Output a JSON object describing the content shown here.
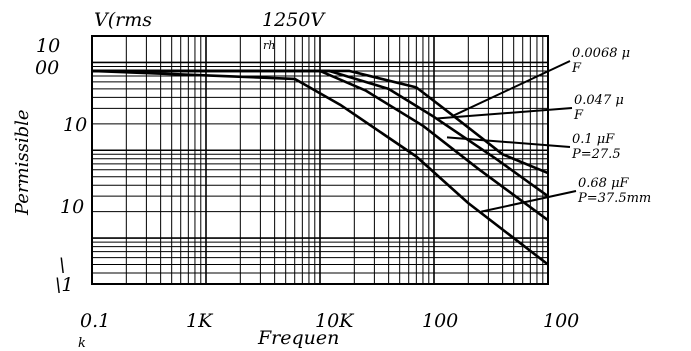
{
  "chart_data": {
    "type": "line",
    "title": "1250V",
    "ylabel": "Permissible",
    "yunit": "V(rms",
    "xlabel": "Frequen",
    "x_scale": "log",
    "y_scale": "log",
    "xlim": [
      100,
      1000000
    ],
    "ylim": [
      3,
      2000
    ],
    "x_tick_labels": [
      "0.1",
      "1K",
      "10K",
      "100",
      "100"
    ],
    "x_tick_values": [
      100,
      1000,
      10000,
      100000,
      1000000
    ],
    "x_tick_sub": [
      "k"
    ],
    "y_tick_labels": [
      "10",
      "00",
      "10",
      "10",
      "\\",
      "\\1"
    ],
    "fragment_text": "rh",
    "series": [
      {
        "name": "0.0068 μF",
        "points": [
          [
            100,
            800
          ],
          [
            18000,
            800
          ],
          [
            70000,
            520
          ],
          [
            140000,
            260
          ],
          [
            400000,
            90
          ],
          [
            1000000,
            55
          ]
        ]
      },
      {
        "name": "0.047 μF",
        "points": [
          [
            100,
            800
          ],
          [
            12000,
            800
          ],
          [
            40000,
            500
          ],
          [
            100000,
            240
          ],
          [
            350000,
            80
          ],
          [
            1000000,
            30
          ]
        ]
      },
      {
        "name": "0.1 μF",
        "points": [
          [
            100,
            800
          ],
          [
            10000,
            800
          ],
          [
            25000,
            480
          ],
          [
            80000,
            190
          ],
          [
            250000,
            60
          ],
          [
            1000000,
            16
          ]
        ]
      },
      {
        "name": "0.68 μF",
        "points": [
          [
            100,
            800
          ],
          [
            6000,
            650
          ],
          [
            15000,
            330
          ],
          [
            70000,
            85
          ],
          [
            200000,
            25
          ],
          [
            1000000,
            5
          ]
        ]
      }
    ],
    "legend_labels": [
      {
        "lines": [
          "0.0068 μ",
          "F"
        ]
      },
      {
        "lines": [
          "0.047 μ",
          "F"
        ]
      },
      {
        "lines": [
          "0.1 μF",
          "P=27.5"
        ]
      },
      {
        "lines": [
          "0.68 μF",
          "P=37.5mm"
        ]
      }
    ],
    "grid": true
  }
}
